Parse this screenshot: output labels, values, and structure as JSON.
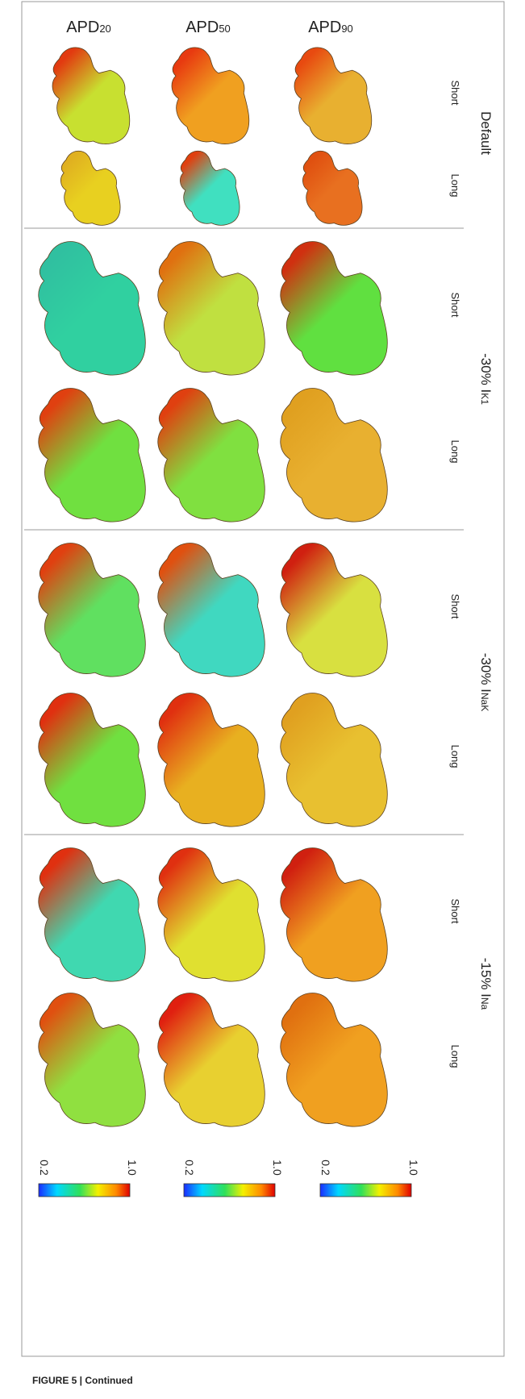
{
  "columns": [
    {
      "base": "APD",
      "sub": "20"
    },
    {
      "base": "APD",
      "sub": "50"
    },
    {
      "base": "APD",
      "sub": "90"
    }
  ],
  "groups": [
    {
      "label": {
        "prefix": "Default",
        "sub": ""
      },
      "rows": [
        "Short",
        "Long"
      ]
    },
    {
      "label": {
        "prefix": "-30% I",
        "sub": "K1"
      },
      "rows": [
        "Short",
        "Long"
      ]
    },
    {
      "label": {
        "prefix": "-30% I",
        "sub": "NaK"
      },
      "rows": [
        "Short",
        "Long"
      ]
    },
    {
      "label": {
        "prefix": "-15% I",
        "sub": "Na"
      },
      "rows": [
        "Short",
        "Long"
      ]
    }
  ],
  "colorbars": [
    {
      "min": "0.2",
      "max": "1.0"
    },
    {
      "min": "0.2",
      "max": "1.0"
    },
    {
      "min": "0.2",
      "max": "1.0"
    }
  ],
  "caption": "FIGURE 5 | Continued"
}
